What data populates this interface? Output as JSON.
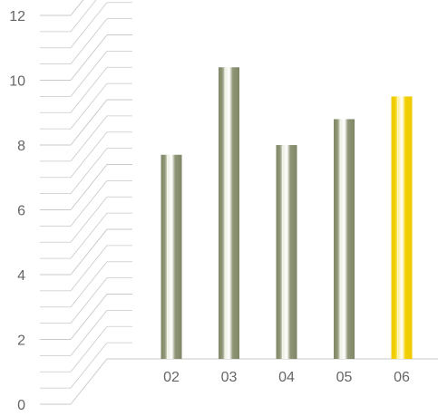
{
  "chart_data": {
    "type": "bar",
    "title": "",
    "xlabel": "",
    "ylabel": "",
    "categories": [
      "02",
      "03",
      "04",
      "05",
      "06"
    ],
    "values": [
      6.3,
      9.0,
      6.6,
      7.4,
      8.1
    ],
    "ylim": [
      0,
      12
    ],
    "y_ticks": [
      "0",
      "2",
      "4",
      "6",
      "8",
      "10",
      "12"
    ],
    "grid": true,
    "legend": "none",
    "highlight_category": "06",
    "colors": {
      "bar": "#8f9677",
      "bar_dark": "#7f8666",
      "bar_light": "#eef0e4",
      "highlight": "#f2d000",
      "highlight_light": "#fff1a0",
      "grid": "#c9c9c9",
      "text": "#666666"
    }
  }
}
